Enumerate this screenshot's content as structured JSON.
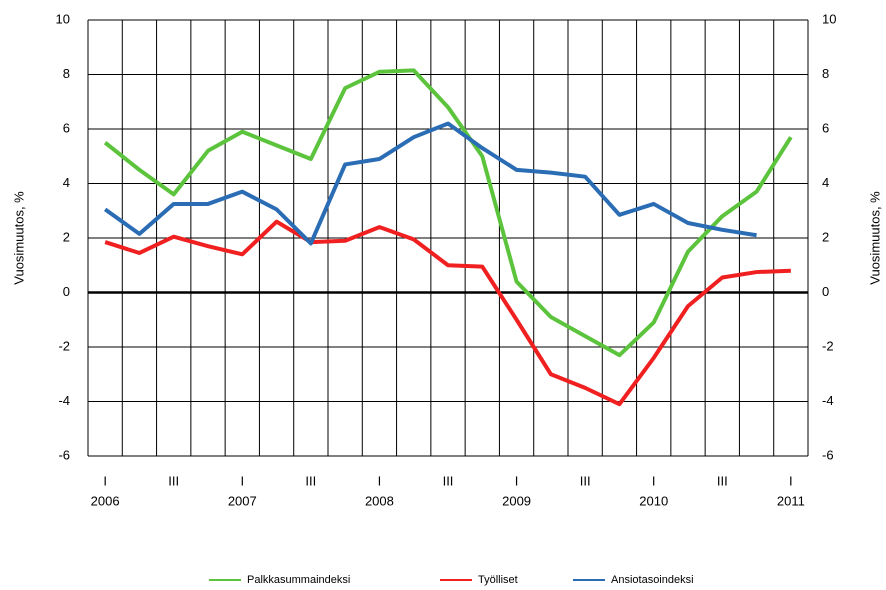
{
  "chart_data": {
    "type": "line",
    "categories": [
      "I",
      null,
      "III",
      null,
      "I",
      null,
      "III",
      null,
      "I",
      null,
      "III",
      null,
      "I",
      null,
      "III",
      null,
      "I",
      null,
      "III",
      null,
      "I"
    ],
    "years": [
      "2006",
      null,
      null,
      null,
      "2007",
      null,
      null,
      null,
      "2008",
      null,
      null,
      null,
      "2009",
      null,
      null,
      null,
      "2010",
      null,
      null,
      null,
      "2011"
    ],
    "ylabel": "Vuosimuutos, %",
    "y2label": "Vuosimuutos, %",
    "ylim": [
      -6,
      10
    ],
    "yticks": [
      -6,
      -4,
      -2,
      0,
      2,
      4,
      6,
      8,
      10
    ],
    "y2lim": [
      -6,
      10
    ],
    "y2ticks": [
      -6,
      -4,
      -2,
      0,
      2,
      4,
      6,
      8,
      10
    ],
    "grid": true,
    "series": [
      {
        "name": "Palkkasummaindeksi",
        "color": "#5cc43c",
        "values": [
          5.5,
          4.5,
          3.6,
          5.2,
          5.9,
          5.4,
          4.9,
          7.5,
          8.1,
          8.15,
          6.8,
          5.0,
          0.4,
          -0.9,
          -1.6,
          -2.3,
          -1.1,
          1.5,
          2.8,
          3.7,
          5.7
        ]
      },
      {
        "name": "Työlliset",
        "color": "#f02020",
        "values": [
          1.85,
          1.45,
          2.05,
          1.7,
          1.4,
          2.6,
          1.85,
          1.9,
          2.4,
          1.95,
          1.0,
          0.95,
          -1.0,
          -3.0,
          -3.5,
          -4.1,
          -2.4,
          -0.5,
          0.55,
          0.75,
          0.8
        ]
      },
      {
        "name": "Ansiotasoindeksi",
        "color": "#2a6db5",
        "values": [
          3.05,
          2.15,
          3.25,
          3.25,
          3.7,
          3.05,
          1.8,
          4.7,
          4.9,
          5.7,
          6.2,
          5.3,
          4.5,
          4.4,
          4.25,
          2.85,
          3.25,
          2.55,
          2.3,
          2.1,
          null
        ]
      }
    ]
  }
}
